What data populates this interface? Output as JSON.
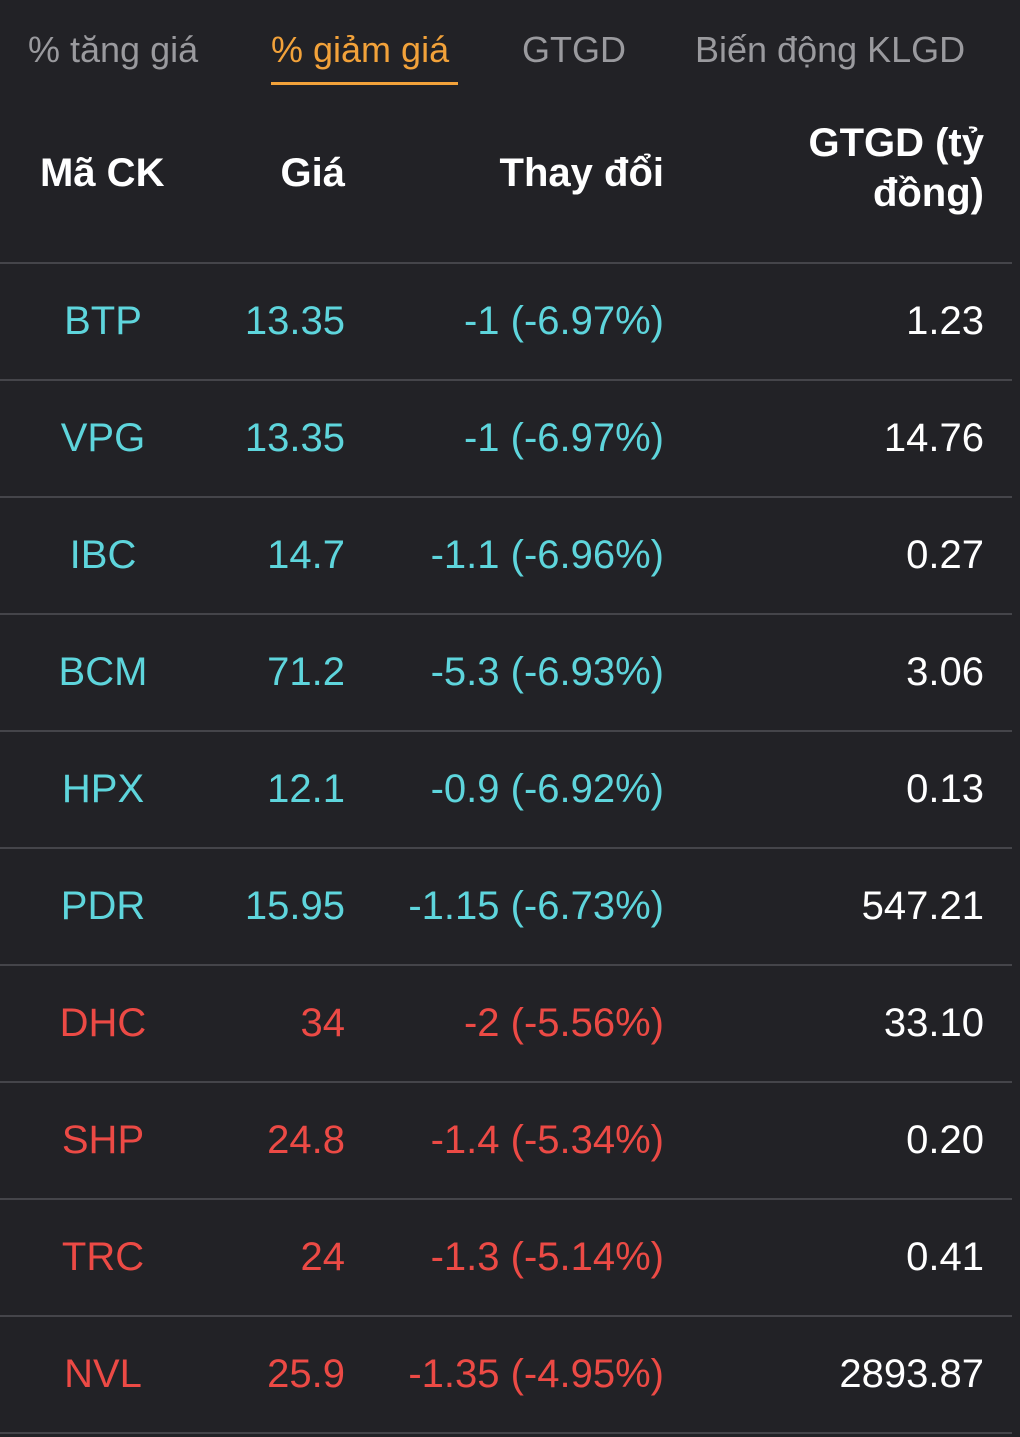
{
  "tabs": [
    {
      "label": "% tăng giá",
      "active": false
    },
    {
      "label": "% giảm giá",
      "active": true
    },
    {
      "label": "GTGD",
      "active": false
    },
    {
      "label": "Biến động KLGD",
      "active": false
    }
  ],
  "table": {
    "headers": {
      "code": "Mã CK",
      "price": "Giá",
      "change": "Thay đổi",
      "value_line1": "GTGD (tỷ",
      "value_line2": "đồng)"
    },
    "rows": [
      {
        "code": "BTP",
        "price": "13.35",
        "change": "-1 (-6.97%)",
        "value": "1.23",
        "status": "floor"
      },
      {
        "code": "VPG",
        "price": "13.35",
        "change": "-1 (-6.97%)",
        "value": "14.76",
        "status": "floor"
      },
      {
        "code": "IBC",
        "price": "14.7",
        "change": "-1.1 (-6.96%)",
        "value": "0.27",
        "status": "floor"
      },
      {
        "code": "BCM",
        "price": "71.2",
        "change": "-5.3 (-6.93%)",
        "value": "3.06",
        "status": "floor"
      },
      {
        "code": "HPX",
        "price": "12.1",
        "change": "-0.9 (-6.92%)",
        "value": "0.13",
        "status": "floor"
      },
      {
        "code": "PDR",
        "price": "15.95",
        "change": "-1.15 (-6.73%)",
        "value": "547.21",
        "status": "floor"
      },
      {
        "code": "DHC",
        "price": "34",
        "change": "-2 (-5.56%)",
        "value": "33.10",
        "status": "down"
      },
      {
        "code": "SHP",
        "price": "24.8",
        "change": "-1.4 (-5.34%)",
        "value": "0.20",
        "status": "down"
      },
      {
        "code": "TRC",
        "price": "24",
        "change": "-1.3 (-5.14%)",
        "value": "0.41",
        "status": "down"
      },
      {
        "code": "NVL",
        "price": "25.9",
        "change": "-1.35 (-4.95%)",
        "value": "2893.87",
        "status": "down"
      }
    ]
  },
  "colors": {
    "background": "#222226",
    "active_tab": "#f2a23a",
    "inactive_tab": "#9a9a9e",
    "floor_color": "#5ed5dc",
    "down_color": "#ec4a45",
    "divider": "#45454a"
  }
}
